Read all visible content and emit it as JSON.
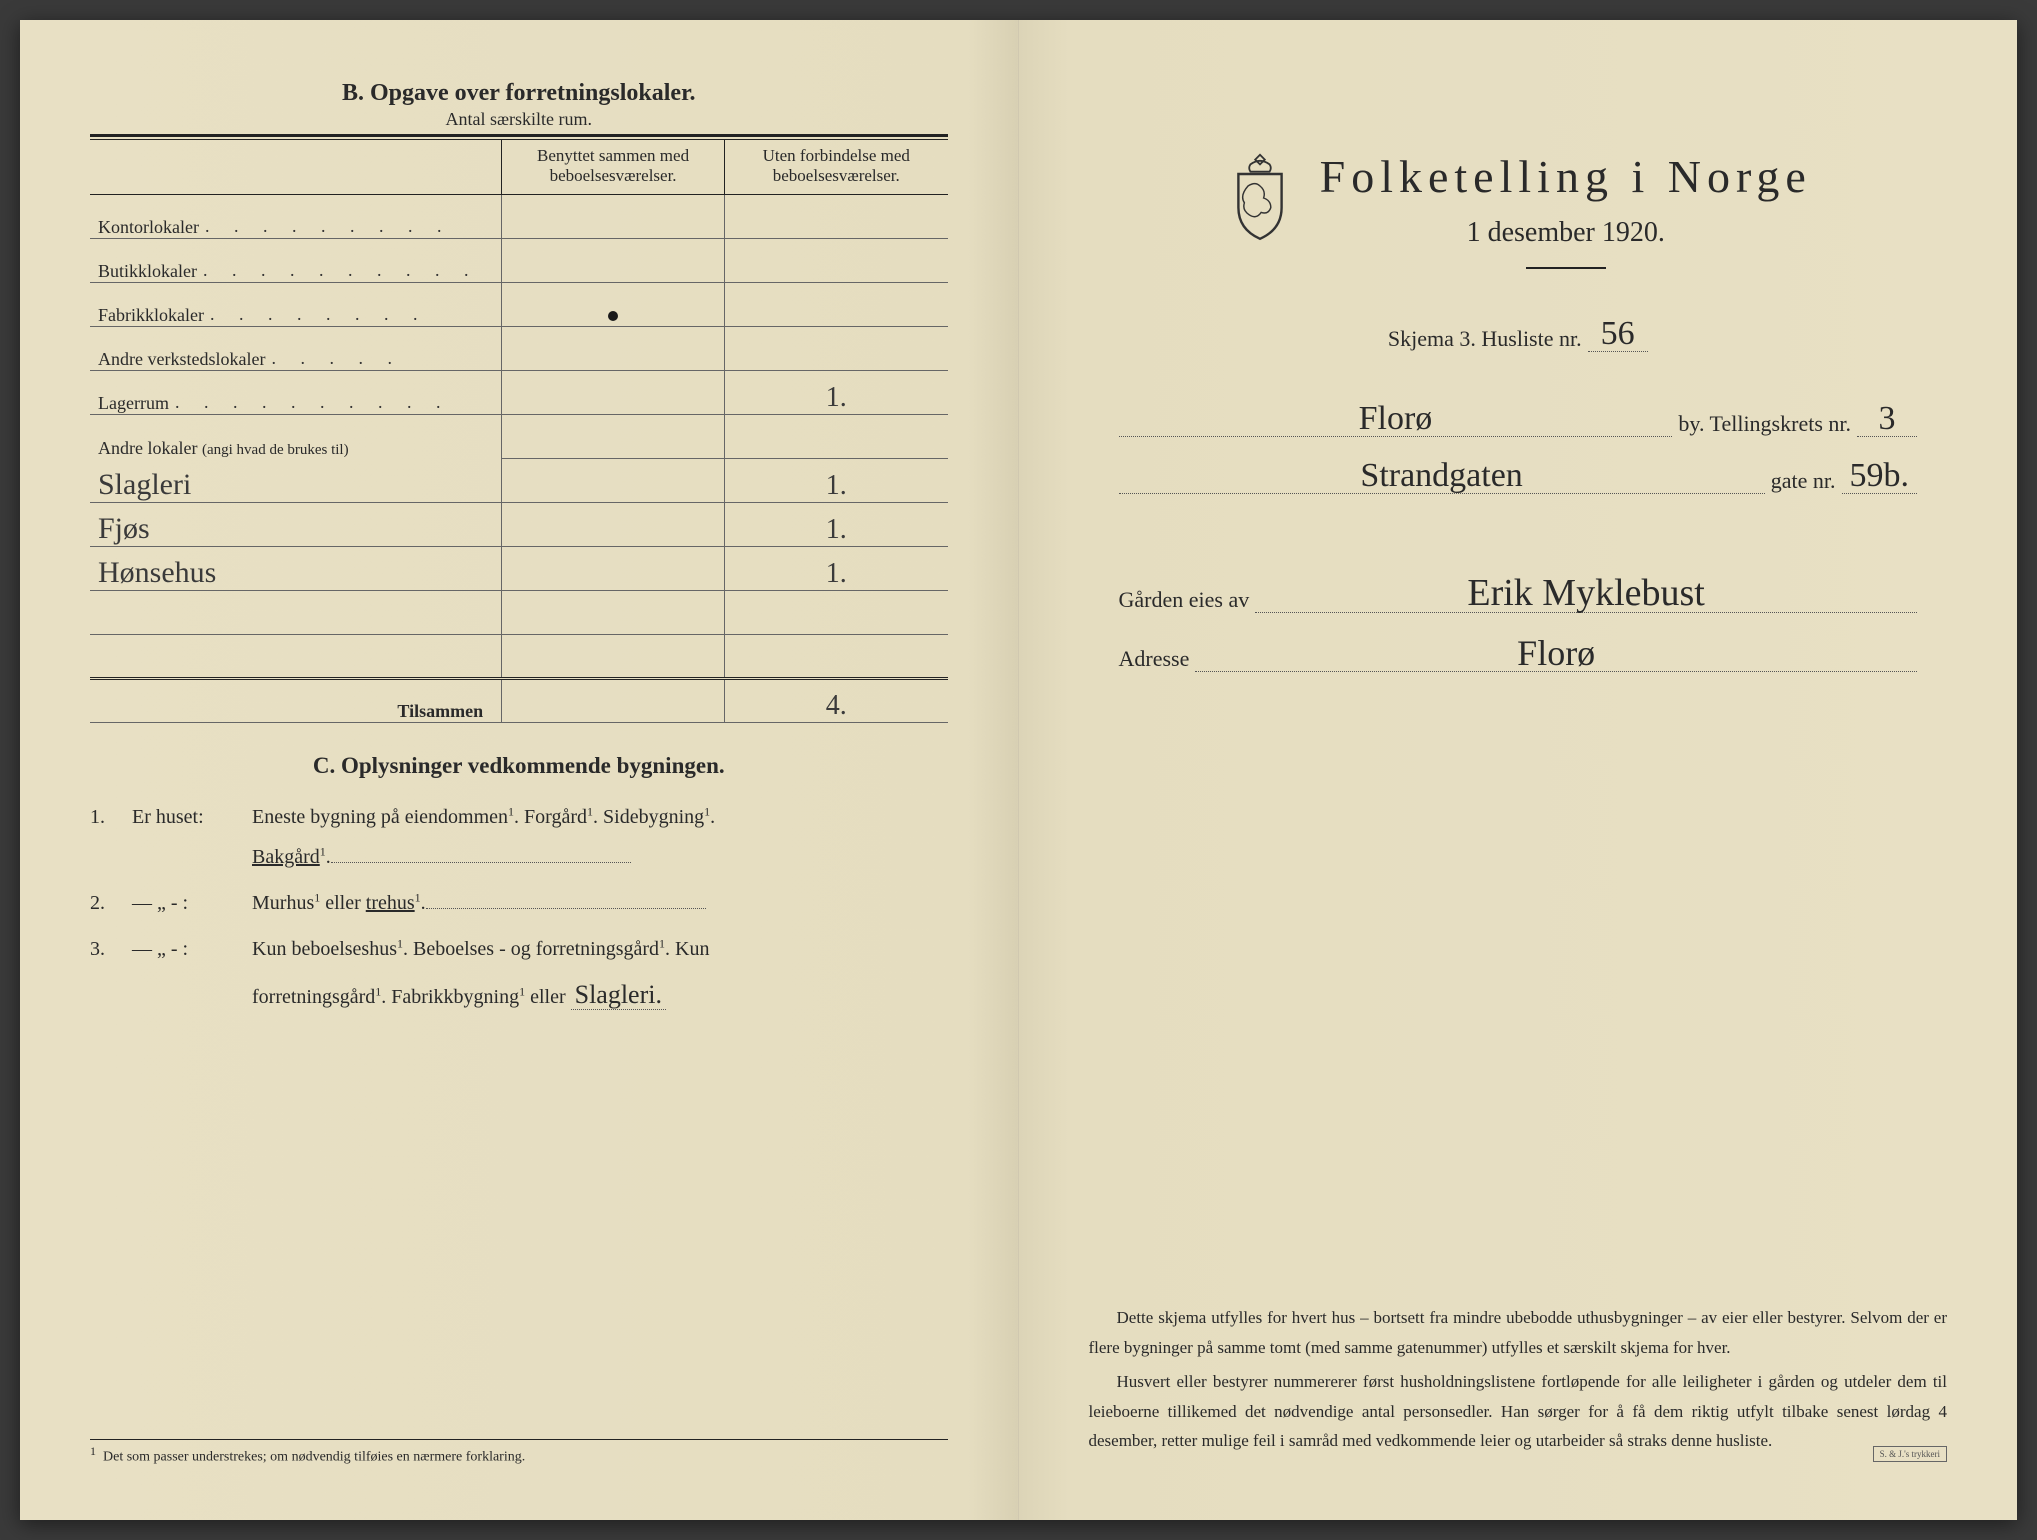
{
  "left": {
    "sectionB": {
      "title": "B.  Opgave over forretningslokaler.",
      "subtitle": "Antal særskilte rum.",
      "col2_header_l1": "Benyttet sammen med",
      "col2_header_l2": "beboelsesværelser.",
      "col3_header_l1": "Uten forbindelse med",
      "col3_header_l2": "beboelsesværelser.",
      "rows": [
        {
          "label": "Kontorlokaler",
          "dots": ". . . . . . . . .",
          "c2": "",
          "c3": ""
        },
        {
          "label": "Butikklokaler",
          "dots": ". .  . . . . . . . .",
          "c2": "",
          "c3": ""
        },
        {
          "label": "Fabrikklokaler",
          "dots": ". . . . . . . .",
          "c2": "●",
          "c3": ""
        },
        {
          "label": "Andre verkstedslokaler",
          "dots": ". . . . .",
          "c2": "",
          "c3": ""
        },
        {
          "label": "Lagerrum",
          "dots": ". . . . . . . . . .",
          "c2": "",
          "c3": "1."
        }
      ],
      "other_label": "Andre lokaler",
      "other_hint": "(angi hvad de brukes til)",
      "other_rows": [
        {
          "hand": "Slagleri",
          "c2": "",
          "c3": "1."
        },
        {
          "hand": "Fjøs",
          "c2": "",
          "c3": "1."
        },
        {
          "hand": "Hønsehus",
          "c2": "",
          "c3": "1."
        },
        {
          "hand": "",
          "c2": "",
          "c3": ""
        },
        {
          "hand": "",
          "c2": "",
          "c3": ""
        }
      ],
      "total_label": "Tilsammen",
      "total_c2": "",
      "total_c3": "4."
    },
    "sectionC": {
      "title": "C.   Oplysninger vedkommende bygningen.",
      "item1_num": "1.",
      "item1_lead": "Er  huset:",
      "item1_body_a": "Eneste bygning på eiendommen",
      "item1_body_b": "Forgård",
      "item1_body_c": "Sidebygning",
      "item1_body_d": "Bakgård",
      "item2_num": "2.",
      "item2_lead": "— „ -  :",
      "item2_a": "Murhus",
      "item2_or": " eller ",
      "item2_b": "trehus",
      "item3_num": "3.",
      "item3_lead": "— „ -  :",
      "item3_a": "Kun  beboelseshus",
      "item3_b": "Beboelses -  og  forretningsgård",
      "item3_c": "Kun",
      "item3_d": "forretningsgård",
      "item3_e": "Fabrikkbygning",
      "item3_or": " eller",
      "item3_fill": "Slagleri.",
      "footnote_mark": "1",
      "footnote": "Det som passer understrekes; om nødvendig tilføies en nærmere forklaring."
    }
  },
  "right": {
    "title": "Folketelling  i  Norge",
    "date": "1 desember 1920.",
    "skjema_label": "Skjema 3.  Husliste nr.",
    "husliste_nr": "56",
    "by_fill": "Florø",
    "by_label": "by.   Tellingskrets nr.",
    "krets_nr": "3",
    "gate_fill": "Strandgaten",
    "gate_label": "gate nr.",
    "gate_nr": "59b.",
    "owner_label": "Gården  eies  av",
    "owner_name": "Erik  Myklebust",
    "adresse_label": "Adresse",
    "adresse_val": "Florø",
    "instr_p1": "Dette skjema utfylles for hvert hus – bortsett fra mindre ubebodde uthusbygninger – av eier eller bestyrer. Selvom der er flere bygninger på samme tomt (med samme gatenummer) utfylles et særskilt skjema for hver.",
    "instr_p2": "Husvert eller bestyrer nummererer først husholdningslistene fortløpende for alle leiligheter i gården og utdeler dem til leieboerne tillikemed det nødvendige antal personsedler. Han sørger for å få dem riktig utfylt tilbake senest lørdag 4 desember, retter mulige feil i samråd med vedkommende leier og utarbeider så straks denne husliste.",
    "stamp": "S. & J.'s trykkeri"
  },
  "colors": {
    "paper": "#e8e0c4",
    "ink": "#2a2a2a",
    "hand": "#3a3a3a"
  }
}
